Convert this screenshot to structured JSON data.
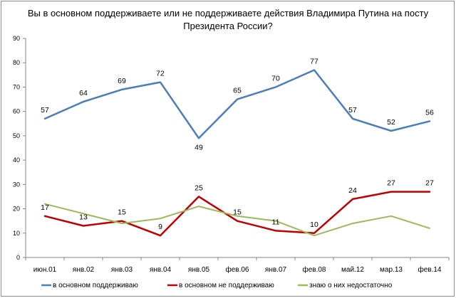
{
  "chart_data": {
    "type": "line",
    "title_line1": "Вы в основном поддерживаете или не поддерживаете действия Владимира Путина на посту",
    "title_line2": "Президента  России?",
    "categories": [
      "июн.01",
      "янв.02",
      "янв.03",
      "янв.04",
      "янв.05",
      "фев.06",
      "янв.07",
      "фев.08",
      "май.12",
      "мар.13",
      "фев.14"
    ],
    "ylim": [
      0,
      90
    ],
    "yticks": [
      0,
      10,
      20,
      30,
      40,
      50,
      60,
      70,
      80,
      90
    ],
    "grid": false,
    "legend_position": "bottom",
    "series": [
      {
        "name": "в основном поддерживаю",
        "color": "#4a7ebb",
        "values": [
          57,
          64,
          69,
          72,
          49,
          65,
          70,
          77,
          57,
          52,
          56
        ],
        "labels": [
          "57",
          "64",
          "69",
          "72",
          "49",
          "65",
          "70",
          "77",
          "57",
          "52",
          "56"
        ],
        "show_labels": true
      },
      {
        "name": "в основном не поддерживаю",
        "color": "#be0000",
        "values": [
          17,
          13,
          15,
          9,
          25,
          15,
          11,
          10,
          24,
          27,
          27
        ],
        "labels": [
          "17",
          "13",
          "15",
          "9",
          "25",
          "15",
          "11",
          "10",
          "24",
          "27",
          "27"
        ],
        "show_labels": true
      },
      {
        "name": "знаю о них недостаточно",
        "color": "#9bbb59",
        "values": [
          22,
          18,
          14,
          16,
          21,
          17,
          15,
          9,
          14,
          17,
          12
        ],
        "show_labels": false
      }
    ]
  }
}
